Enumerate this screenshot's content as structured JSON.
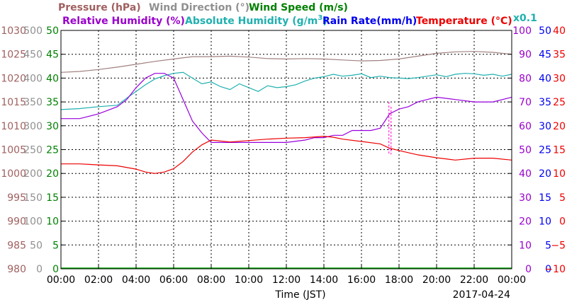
{
  "chart_data": {
    "type": "line",
    "date": "2017-04-24",
    "xlabel": "Time (JST)",
    "x_ticks": [
      "00:00",
      "02:00",
      "04:00",
      "06:00",
      "08:00",
      "10:00",
      "12:00",
      "14:00",
      "16:00",
      "18:00",
      "20:00",
      "22:00",
      "00:00"
    ],
    "x_range_hours": [
      0,
      24
    ],
    "grid": true,
    "titles": {
      "pressure": "Pressure (hPa)",
      "wind_direction": "Wind Direction (°)",
      "wind_speed": "Wind Speed (m/s)",
      "relative_humidity": "Relative Humidity (%)",
      "absolute_humidity": "Absolute Humidity (g/m³)",
      "rain_rate": "Rain Rate(mm/h)",
      "temperature": "Temperature (°C)",
      "rain_scale": "x0.1"
    },
    "left_axes": [
      {
        "name": "pressure",
        "range": [
          980,
          1030
        ],
        "ticks": [
          "1030",
          "1025",
          "1020",
          "1015",
          "1010",
          "1005",
          "1000",
          "995",
          "990",
          "985",
          "980"
        ],
        "color": "#a06060"
      },
      {
        "name": "wind_direction",
        "range": [
          0,
          500
        ],
        "ticks": [
          "500",
          "450",
          "400",
          "350",
          "300",
          "250",
          "200",
          "150",
          "100",
          "50",
          "0"
        ],
        "color": "#909090"
      },
      {
        "name": "wind_speed",
        "range": [
          0,
          50
        ],
        "ticks": [
          "50",
          "45",
          "40",
          "35",
          "30",
          "25",
          "20",
          "15",
          "10",
          "5",
          "0"
        ],
        "color": "#008000"
      }
    ],
    "right_axes": [
      {
        "name": "relative_humidity",
        "range": [
          0,
          100
        ],
        "ticks": [
          "100",
          "90",
          "80",
          "70",
          "60",
          "50",
          "40",
          "30",
          "20",
          "10",
          "0"
        ],
        "color": "#9900cc"
      },
      {
        "name": "rain_rate",
        "range": [
          0,
          50
        ],
        "ticks": [
          "50",
          "45",
          "40",
          "35",
          "30",
          "25",
          "20",
          "15",
          "10",
          "5",
          "0"
        ],
        "color": "#0000ee"
      },
      {
        "name": "temperature",
        "range": [
          -10,
          40
        ],
        "ticks": [
          "40",
          "35",
          "30",
          "25",
          "20",
          "15",
          "10",
          "5",
          "0",
          "−5",
          "−10"
        ],
        "color": "#ee0000"
      }
    ],
    "series": [
      {
        "key": "pressure",
        "name": "Pressure (hPa)",
        "color": "#a08080",
        "x": [
          0,
          1,
          2,
          3,
          4,
          5,
          6,
          7,
          8,
          9,
          10,
          11,
          12,
          13,
          14,
          15,
          16,
          17,
          18,
          19,
          20,
          21,
          22,
          23,
          24
        ],
        "y": [
          1021.2,
          1021.4,
          1021.8,
          1022.3,
          1022.9,
          1023.5,
          1024.0,
          1024.5,
          1024.5,
          1024.6,
          1024.4,
          1024.1,
          1024.0,
          1024.1,
          1024.0,
          1023.8,
          1023.6,
          1023.7,
          1024.0,
          1024.6,
          1025.2,
          1025.5,
          1025.6,
          1025.4,
          1025.0
        ]
      },
      {
        "key": "absolute_humidity",
        "name": "Absolute Humidity (g/m³)",
        "color": "#20b0b0",
        "axis": "wind_speed",
        "x": [
          0,
          1,
          2,
          3,
          3.5,
          4,
          4.5,
          5,
          5.5,
          6,
          6.5,
          7,
          7.5,
          8,
          8.5,
          9,
          9.5,
          10,
          10.5,
          11,
          11.5,
          12,
          12.5,
          13,
          13.5,
          14,
          14.5,
          15,
          15.5,
          16,
          16.5,
          17,
          17.5,
          18,
          18.5,
          19,
          19.5,
          20,
          20.5,
          21,
          21.5,
          22,
          22.5,
          23,
          23.5,
          24
        ],
        "y": [
          33.4,
          33.6,
          34.0,
          34.3,
          35.8,
          37.2,
          38.6,
          39.8,
          40.5,
          41.0,
          41.2,
          40.0,
          38.8,
          39.2,
          38.2,
          37.6,
          38.8,
          38.0,
          37.2,
          38.4,
          38.0,
          38.2,
          38.6,
          39.4,
          40.0,
          40.3,
          40.8,
          40.4,
          40.6,
          40.9,
          40.1,
          40.4,
          40.1,
          40.0,
          39.9,
          40.1,
          40.4,
          40.7,
          40.3,
          40.8,
          41.0,
          40.9,
          40.6,
          40.8,
          40.4,
          40.8
        ]
      },
      {
        "key": "relative_humidity",
        "name": "Relative Humidity (%)",
        "color": "#9900dd",
        "x": [
          0,
          1,
          2,
          3,
          3.5,
          4,
          4.5,
          5,
          5.5,
          6,
          6.5,
          7,
          7.5,
          8,
          8.5,
          9,
          10,
          11,
          12,
          13,
          13.5,
          14,
          14.5,
          15,
          15.5,
          16,
          16.5,
          17,
          17.5,
          18,
          18.5,
          19,
          19.5,
          20,
          21,
          22,
          23,
          24
        ],
        "y": [
          63,
          63,
          65,
          68,
          71,
          76,
          80,
          82,
          82,
          80,
          71,
          62,
          57,
          53,
          53,
          53,
          53,
          53,
          53,
          54,
          55,
          55,
          56,
          56,
          58,
          58,
          58,
          59,
          65,
          67,
          68,
          70,
          71,
          72,
          71,
          70,
          70,
          72
        ]
      },
      {
        "key": "temperature",
        "name": "Temperature (°C)",
        "color": "#ee0000",
        "x": [
          0,
          1,
          2,
          3,
          4,
          4.5,
          5,
          5.5,
          6,
          6.5,
          7,
          7.5,
          8,
          9,
          10,
          11,
          12,
          13,
          14,
          14.5,
          15,
          16,
          17,
          17.5,
          18,
          19,
          20,
          21,
          22,
          23,
          24
        ],
        "y": [
          12.0,
          12.0,
          11.8,
          11.6,
          10.9,
          10.3,
          10.0,
          10.3,
          11.0,
          12.5,
          14.5,
          16.0,
          17.0,
          16.6,
          16.9,
          17.2,
          17.4,
          17.5,
          17.8,
          17.6,
          17.2,
          16.7,
          16.2,
          15.3,
          14.8,
          13.9,
          13.3,
          12.8,
          13.2,
          13.2,
          12.8
        ]
      }
    ],
    "annotations": [
      {
        "name": "dashed-spike",
        "color": "#ff00cc",
        "x": 17.5
      }
    ]
  }
}
